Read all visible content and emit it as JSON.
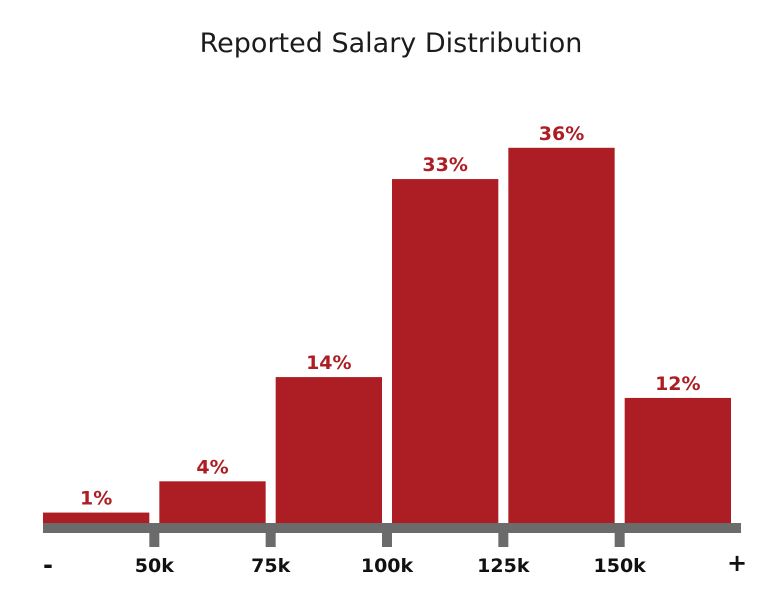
{
  "chart_data": {
    "type": "bar",
    "title": "Reported Salary Distribution",
    "xlabel": "",
    "ylabel": "",
    "categories": [
      "- to 50k",
      "50k to 75k",
      "75k to 100k",
      "100k to 125k",
      "125k to 150k",
      "150k to +"
    ],
    "values": [
      1,
      4,
      14,
      33,
      36,
      12
    ],
    "value_labels": [
      "1%",
      "4%",
      "14%",
      "33%",
      "36%",
      "12%"
    ],
    "x_tick_labels": [
      "50k",
      "75k",
      "100k",
      "125k",
      "150k"
    ],
    "x_end_labels": {
      "left": "-",
      "right": "+"
    },
    "ylim": [
      0,
      45
    ],
    "grid": false,
    "legend": "none",
    "colors": {
      "bar": "#ad1e24",
      "value_label": "#ad1e24",
      "axis": "#6b6b6b",
      "tick_label": "#111111",
      "title": "#1c1c1c"
    }
  }
}
